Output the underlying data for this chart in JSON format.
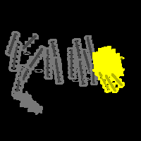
{
  "background_color": "#000000",
  "gray_color": [
    120,
    120,
    120
  ],
  "dark_gray_color": [
    70,
    70,
    70
  ],
  "yellow_color": [
    255,
    255,
    0
  ],
  "dark_yellow_color": [
    180,
    180,
    0
  ],
  "fig_width": 2.0,
  "fig_height": 2.0,
  "dpi": 100
}
